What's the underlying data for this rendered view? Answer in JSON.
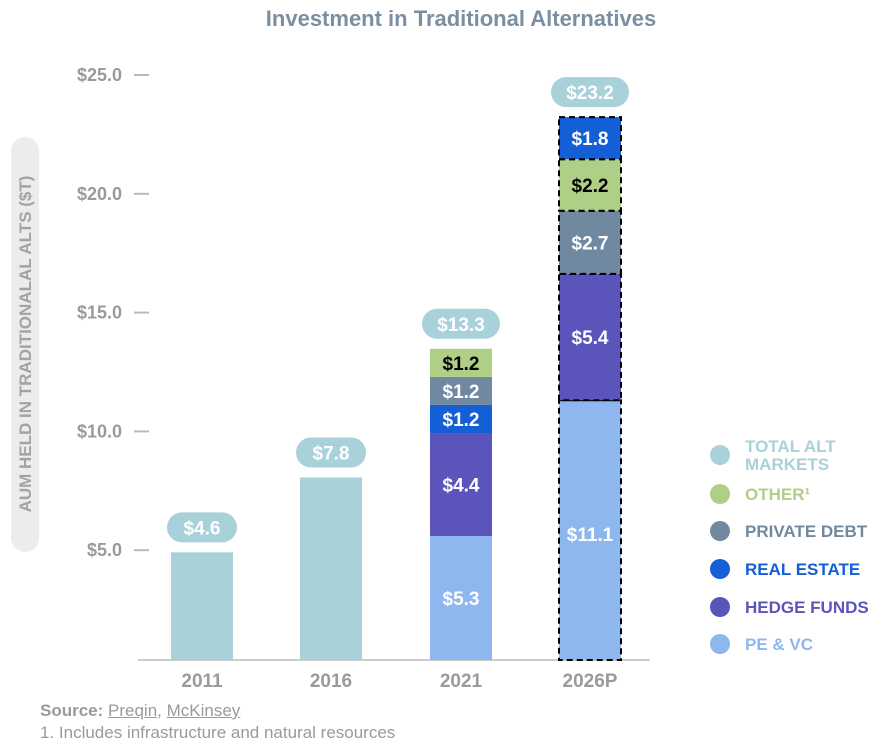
{
  "chart_data": {
    "type": "bar",
    "stacked": true,
    "title": "Investment in Traditional Alternatives",
    "xlabel": "",
    "ylabel": "AUM HELD IN TRADITIONALAL ALTS ($T)",
    "ylim": [
      0,
      25
    ],
    "yticks": [
      5,
      10,
      15,
      20,
      25
    ],
    "ytick_labels": [
      "$5.0",
      "$10.0",
      "$15.0",
      "$20.0",
      "$25.0"
    ],
    "categories": [
      "2011",
      "2016",
      "2021",
      "2026P"
    ],
    "projected": [
      false,
      false,
      false,
      true
    ],
    "totals": [
      4.6,
      7.8,
      13.3,
      23.2
    ],
    "total_labels": [
      "$4.6",
      "$7.8",
      "$13.3",
      "$23.2"
    ],
    "series": [
      {
        "name": "TOTAL ALT MARKETS",
        "color": "#a8d1d9",
        "values": [
          4.6,
          7.8,
          null,
          null
        ],
        "show_labels": false
      },
      {
        "name": "PE & VC",
        "color": "#8fb7ef",
        "label_color": "#ffffff",
        "values": [
          null,
          null,
          5.3,
          11.1
        ],
        "labels": [
          null,
          null,
          "$5.3",
          "$11.1"
        ]
      },
      {
        "name": "HEDGE FUNDS",
        "color": "#5b55bb",
        "label_color": "#ffffff",
        "values": [
          null,
          null,
          4.4,
          5.4
        ],
        "labels": [
          null,
          null,
          "$4.4",
          "$5.4"
        ]
      },
      {
        "name": "REAL ESTATE",
        "color": "#155fd6",
        "label_color": "#ffffff",
        "values": [
          null,
          null,
          1.2,
          1.8
        ],
        "labels": [
          null,
          null,
          "$1.2",
          "$1.8"
        ]
      },
      {
        "name": "PRIVATE DEBT",
        "color": "#7189a0",
        "label_color": "#ffffff",
        "values": [
          null,
          null,
          1.2,
          2.7
        ],
        "labels": [
          null,
          null,
          "$1.2",
          "$2.7"
        ]
      },
      {
        "name": "OTHER¹",
        "color": "#b0cf86",
        "label_color": "#000000",
        "values": [
          null,
          null,
          1.2,
          2.2
        ],
        "labels": [
          null,
          null,
          "$1.2",
          "$2.2"
        ]
      }
    ],
    "stack_order": {
      "2021": [
        "PE & VC",
        "HEDGE FUNDS",
        "REAL ESTATE",
        "PRIVATE DEBT",
        "OTHER¹"
      ],
      "2026P": [
        "PE & VC",
        "HEDGE FUNDS",
        "PRIVATE DEBT",
        "OTHER¹",
        "REAL ESTATE"
      ]
    },
    "legend": {
      "placement": "right",
      "items": [
        {
          "label": "TOTAL ALT MARKETS",
          "color": "#a8d1d9"
        },
        {
          "label": "OTHER¹",
          "color": "#b0cf86"
        },
        {
          "label": "PRIVATE DEBT",
          "color": "#7189a0"
        },
        {
          "label": "REAL ESTATE",
          "color": "#155fd6"
        },
        {
          "label": "HEDGE FUNDS",
          "color": "#5b55bb"
        },
        {
          "label": "PE & VC",
          "color": "#8fb7ef"
        }
      ]
    },
    "grid": false,
    "total_badge_color": "#a8d1d9"
  },
  "footer": {
    "source_label": "Source:",
    "sources": [
      "Preqin",
      "McKinsey"
    ],
    "separator": ", ",
    "footnote": "1. Includes infrastructure and natural resources"
  }
}
